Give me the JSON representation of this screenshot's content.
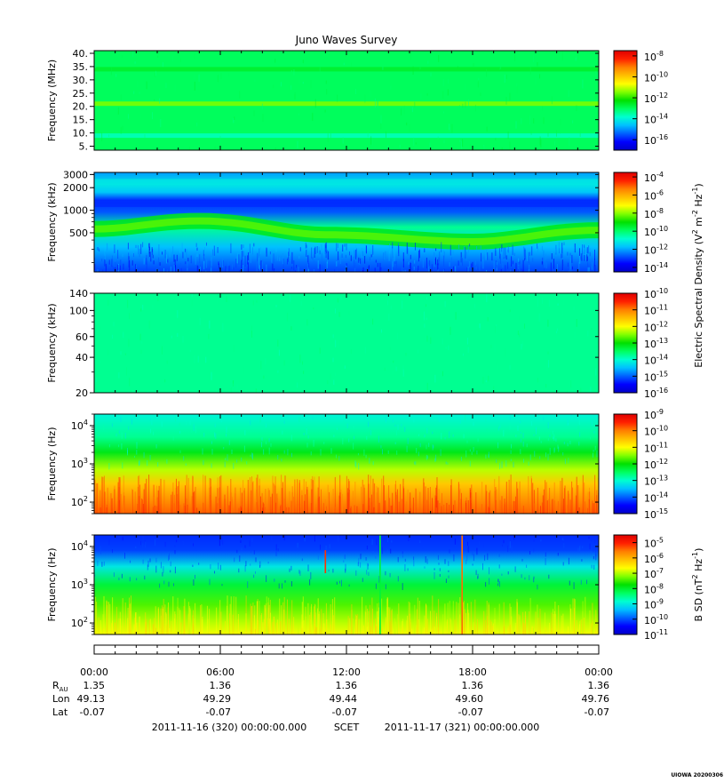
{
  "title": "Juno Waves Survey",
  "stamp": "UIOWA 20200306",
  "colors": {
    "colormap": [
      "#0000c8",
      "#0000ff",
      "#0060ff",
      "#00c0ff",
      "#00ffd0",
      "#00ff60",
      "#00e000",
      "#80ff00",
      "#ffff00",
      "#ffc000",
      "#ff8000",
      "#ff2000",
      "#e00000"
    ]
  },
  "chart_data": [
    {
      "type": "heatmap",
      "ylabel": "Frequency (MHz)",
      "yscale": "linear",
      "ylim": [
        3.5,
        41
      ],
      "yticks": [
        "40.",
        "35.",
        "30.",
        "25.",
        "20.",
        "15.",
        "10.",
        "5."
      ],
      "ytick_values": [
        40,
        35,
        30,
        25,
        20,
        15,
        10,
        5
      ],
      "colorbar": {
        "labels": [
          {
            "base": "10",
            "exp": "-8"
          },
          {
            "base": "10",
            "exp": "-10"
          },
          {
            "base": "10",
            "exp": "-12"
          },
          {
            "base": "10",
            "exp": "-14"
          },
          {
            "base": "10",
            "exp": "-16"
          }
        ],
        "exp_range": [
          -17,
          -7.5
        ],
        "label_exps": [
          -8,
          -10,
          -12,
          -14,
          -16
        ]
      },
      "background_level": 0.42,
      "features": [
        {
          "kind": "band",
          "y": 21,
          "level": 0.58
        },
        {
          "kind": "band",
          "y": 9,
          "level": 0.35
        },
        {
          "kind": "band",
          "y": 34,
          "level": 0.46
        }
      ]
    },
    {
      "type": "heatmap",
      "ylabel": "Frequency (kHz)",
      "yscale": "log",
      "ylim": [
        150,
        3200
      ],
      "yticks": [
        "3000",
        "2000",
        "1000",
        "500"
      ],
      "ytick_values": [
        3000,
        2000,
        1000,
        500
      ],
      "colorbar": {
        "labels": [
          {
            "base": "10",
            "exp": "-4"
          },
          {
            "base": "10",
            "exp": "-6"
          },
          {
            "base": "10",
            "exp": "-8"
          },
          {
            "base": "10",
            "exp": "-10"
          },
          {
            "base": "10",
            "exp": "-12"
          },
          {
            "base": "10",
            "exp": "-14"
          }
        ],
        "exp_range": [
          -14.5,
          -3.5
        ],
        "label_exps": [
          -4,
          -6,
          -8,
          -10,
          -12,
          -14
        ]
      },
      "features": [
        {
          "kind": "curved_band",
          "level": 0.48,
          "ctrl_hours": [
            0,
            5,
            11,
            18,
            24
          ],
          "ctrl_khz": [
            560,
            720,
            470,
            380,
            540
          ]
        },
        {
          "kind": "band",
          "y": 1200,
          "level": 0.12
        },
        {
          "kind": "band",
          "y": 2400,
          "level": 0.3
        }
      ]
    },
    {
      "type": "heatmap",
      "ylabel": "Frequency (kHz)",
      "yscale": "log",
      "ylim": [
        20,
        140
      ],
      "yticks": [
        "140",
        "100",
        "60",
        "40",
        "20"
      ],
      "ytick_values": [
        140,
        100,
        60,
        40,
        20
      ],
      "colorbar": {
        "labels": [
          {
            "base": "10",
            "exp": "-10"
          },
          {
            "base": "10",
            "exp": "-11"
          },
          {
            "base": "10",
            "exp": "-12"
          },
          {
            "base": "10",
            "exp": "-13"
          },
          {
            "base": "10",
            "exp": "-14"
          },
          {
            "base": "10",
            "exp": "-15"
          },
          {
            "base": "10",
            "exp": "-16"
          }
        ],
        "exp_range": [
          -16,
          -10
        ],
        "label_exps": [
          -10,
          -11,
          -12,
          -13,
          -14,
          -15,
          -16
        ]
      },
      "background_level": 0.38
    },
    {
      "type": "heatmap",
      "ylabel": "Frequency (Hz)",
      "yscale": "log",
      "ylim": [
        50,
        20000
      ],
      "yticks": [
        {
          "base": "10",
          "exp": "4"
        },
        {
          "base": "10",
          "exp": "3"
        },
        {
          "base": "10",
          "exp": "2"
        }
      ],
      "ytick_values": [
        10000,
        1000,
        100
      ],
      "colorbar": {
        "labels": [
          {
            "base": "10",
            "exp": "-9"
          },
          {
            "base": "10",
            "exp": "-10"
          },
          {
            "base": "10",
            "exp": "-11"
          },
          {
            "base": "10",
            "exp": "-12"
          },
          {
            "base": "10",
            "exp": "-13"
          },
          {
            "base": "10",
            "exp": "-14"
          },
          {
            "base": "10",
            "exp": "-15"
          }
        ],
        "exp_range": [
          -15,
          -9
        ],
        "label_exps": [
          -9,
          -10,
          -11,
          -12,
          -13,
          -14,
          -15
        ]
      },
      "gradient_levels": [
        {
          "hz": 20000,
          "level": 0.32
        },
        {
          "hz": 5000,
          "level": 0.38
        },
        {
          "hz": 2000,
          "level": 0.48
        },
        {
          "hz": 700,
          "level": 0.62
        },
        {
          "hz": 300,
          "level": 0.74
        },
        {
          "hz": 100,
          "level": 0.82
        },
        {
          "hz": 50,
          "level": 0.86
        }
      ]
    },
    {
      "type": "heatmap",
      "ylabel": "Frequency (Hz)",
      "yscale": "log",
      "ylim": [
        50,
        20000
      ],
      "yticks": [
        {
          "base": "10",
          "exp": "4"
        },
        {
          "base": "10",
          "exp": "3"
        },
        {
          "base": "10",
          "exp": "2"
        }
      ],
      "ytick_values": [
        10000,
        1000,
        100
      ],
      "colorbar": {
        "labels": [
          {
            "base": "10",
            "exp": "-5"
          },
          {
            "base": "10",
            "exp": "-6"
          },
          {
            "base": "10",
            "exp": "-7"
          },
          {
            "base": "10",
            "exp": "-8"
          },
          {
            "base": "10",
            "exp": "-9"
          },
          {
            "base": "10",
            "exp": "-10"
          },
          {
            "base": "10",
            "exp": "-11"
          }
        ],
        "exp_range": [
          -11,
          -4.5
        ],
        "label_exps": [
          -5,
          -6,
          -7,
          -8,
          -9,
          -10,
          -11
        ]
      },
      "gradient_levels": [
        {
          "hz": 20000,
          "level": 0.12
        },
        {
          "hz": 8000,
          "level": 0.14
        },
        {
          "hz": 3000,
          "level": 0.3
        },
        {
          "hz": 1000,
          "level": 0.45
        },
        {
          "hz": 300,
          "level": 0.55
        },
        {
          "hz": 100,
          "level": 0.62
        },
        {
          "hz": 50,
          "level": 0.66
        }
      ],
      "spikes": [
        {
          "hour": 11.0,
          "level": 0.9,
          "hz_top": 8000,
          "hz_bottom": 2000
        },
        {
          "hour": 13.6,
          "level": 0.45,
          "hz_top": 20000,
          "hz_bottom": 50
        },
        {
          "hour": 17.5,
          "level": 0.85,
          "hz_top": 20000,
          "hz_bottom": 50
        }
      ]
    }
  ],
  "side_labels": {
    "electric": {
      "prefix": "Electric Spectral Density (V",
      "sup1": "2",
      "mid": " m",
      "sup2": "-2",
      "mid2": " Hz",
      "sup3": "-1",
      "suffix": ")"
    },
    "magnetic": {
      "prefix": "B SD (nT",
      "sup1": "2",
      "mid": " Hz",
      "sup2": "-1",
      "suffix": ")"
    }
  },
  "time_axis": {
    "hours_range": [
      0,
      24
    ],
    "tick_hours": [
      0,
      6,
      12,
      18,
      24
    ],
    "tick_labels": [
      "00:00",
      "06:00",
      "12:00",
      "18:00",
      "00:00"
    ],
    "minor_step_hours": 1
  },
  "ephemeris": {
    "rows": [
      {
        "label_base": "R",
        "label_sub": "AU",
        "values": [
          "1.35",
          "1.36",
          "1.36",
          "1.36",
          "1.36"
        ]
      },
      {
        "label": "Lon",
        "values": [
          "49.13",
          "49.29",
          "49.44",
          "49.60",
          "49.76"
        ]
      },
      {
        "label": "Lat",
        "values": [
          "-0.07",
          "-0.07",
          "-0.07",
          "-0.07",
          "-0.07"
        ]
      }
    ]
  },
  "footer": {
    "start": "2011-11-16 (320) 00:00:00.000",
    "scet": "SCET",
    "end": "2011-11-17 (321) 00:00:00.000"
  }
}
